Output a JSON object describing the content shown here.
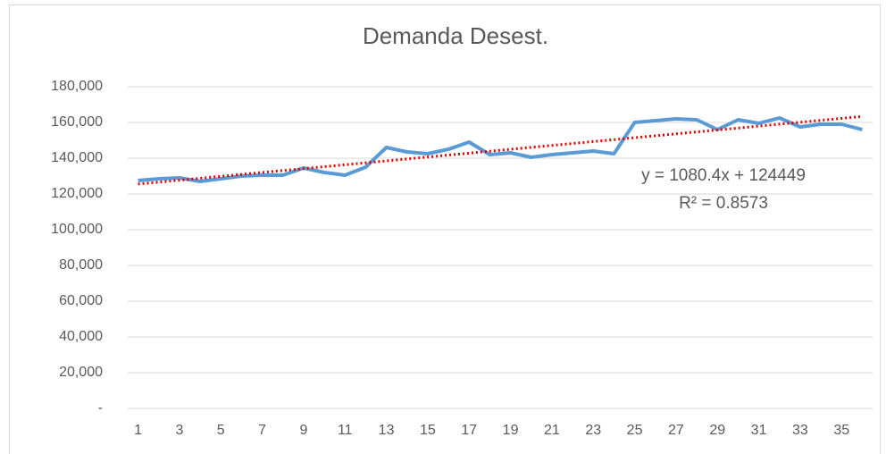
{
  "chart_data": {
    "type": "line",
    "title": "Demanda Desest.",
    "categories": [
      1,
      null,
      3,
      null,
      5,
      null,
      7,
      null,
      9,
      null,
      11,
      null,
      13,
      null,
      15,
      null,
      17,
      null,
      19,
      null,
      21,
      null,
      23,
      null,
      25,
      null,
      27,
      null,
      29,
      null,
      31,
      null,
      33,
      null,
      35,
      null
    ],
    "series": [
      {
        "color": "#5b9bd5",
        "values": [
          127500,
          128500,
          129000,
          127000,
          128500,
          130000,
          130500,
          130500,
          134500,
          132000,
          130500,
          135000,
          146000,
          143500,
          142500,
          145000,
          149000,
          142000,
          143000,
          140500,
          142000,
          143000,
          144000,
          142500,
          160000,
          161000,
          162000,
          161500,
          156000,
          161500,
          159500,
          162500,
          157500,
          159000,
          159000,
          156000
        ]
      }
    ],
    "trendline": {
      "slope": 1080.4,
      "intercept": 124449,
      "color": "#e00000",
      "label": "y = 1080.4x + 124449",
      "r2_label": "R² = 0.8573"
    },
    "ylim": [
      0,
      180000
    ],
    "yticks": [
      {
        "value": 0,
        "label": "-"
      },
      {
        "value": 20000,
        "label": "20,000"
      },
      {
        "value": 40000,
        "label": "40,000"
      },
      {
        "value": 60000,
        "label": "60,000"
      },
      {
        "value": 80000,
        "label": "80,000"
      },
      {
        "value": 100000,
        "label": "100,000"
      },
      {
        "value": 120000,
        "label": "120,000"
      },
      {
        "value": 140000,
        "label": "140,000"
      },
      {
        "value": 160000,
        "label": "160,000"
      },
      {
        "value": 180000,
        "label": "180,000"
      }
    ],
    "grid": true
  }
}
